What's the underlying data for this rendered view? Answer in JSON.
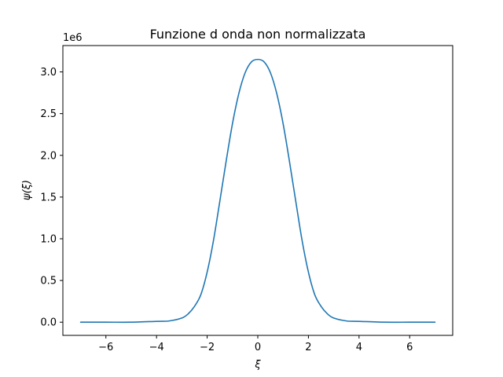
{
  "chart_data": {
    "type": "line",
    "title": "Funzione d onda non normalizzata",
    "xlabel": "ξ",
    "ylabel": "ψ(ξ)",
    "y_offset_label": "1e6",
    "xlim": [
      -7.7,
      7.7
    ],
    "ylim": [
      -0.158,
      3.316
    ],
    "y_scale_factor": 1000000,
    "grid": false,
    "x_ticks": [
      -6,
      -4,
      -2,
      0,
      2,
      4,
      6
    ],
    "x_tick_labels": [
      "−6",
      "−4",
      "−2",
      "0",
      "2",
      "4",
      "6"
    ],
    "y_ticks": [
      0.0,
      0.5,
      1.0,
      1.5,
      2.0,
      2.5,
      3.0
    ],
    "y_tick_labels": [
      "0.0",
      "0.5",
      "1.0",
      "1.5",
      "2.0",
      "2.5",
      "3.0"
    ],
    "series": [
      {
        "color": "#1f77b4",
        "x": [
          -7.0,
          -6.0,
          -5.0,
          -4.0,
          -3.5,
          -3.0,
          -2.75,
          -2.5,
          -2.25,
          -2.0,
          -1.75,
          -1.5,
          -1.25,
          -1.0,
          -0.75,
          -0.5,
          -0.25,
          0.0,
          0.25,
          0.5,
          0.75,
          1.0,
          1.25,
          1.5,
          1.75,
          2.0,
          2.25,
          2.5,
          2.75,
          3.0,
          3.5,
          4.0,
          5.0,
          6.0,
          7.0
        ],
        "y": [
          0.0,
          0.0,
          0.0,
          0.01,
          0.015,
          0.05,
          0.1,
          0.19,
          0.33,
          0.6,
          0.98,
          1.45,
          1.93,
          2.38,
          2.74,
          2.99,
          3.12,
          3.15,
          3.12,
          2.99,
          2.74,
          2.38,
          1.93,
          1.45,
          0.98,
          0.6,
          0.33,
          0.19,
          0.1,
          0.05,
          0.015,
          0.01,
          0.0,
          0.0,
          0.0
        ]
      }
    ]
  }
}
